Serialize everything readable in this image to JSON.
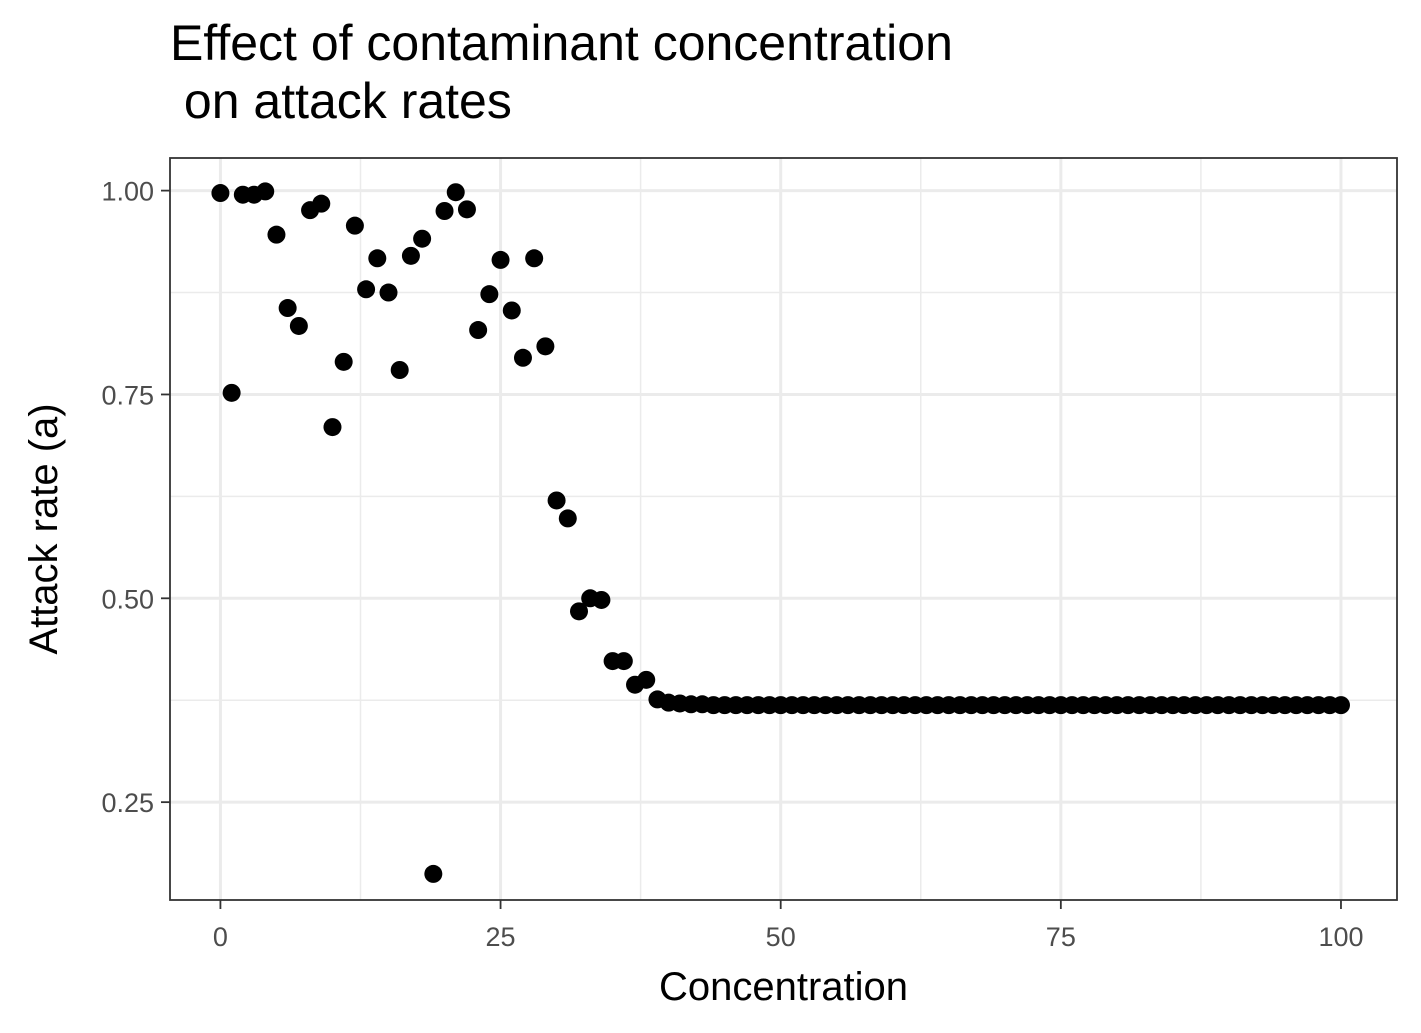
{
  "chart_data": {
    "type": "scatter",
    "title": "Effect of contaminant concentration\n on attack rates",
    "xlabel": "Concentration",
    "ylabel": "Attack rate (a)",
    "xlim": [
      -4.5,
      105
    ],
    "ylim": [
      0.13,
      1.04
    ],
    "xticks": [
      0,
      25,
      50,
      75,
      100
    ],
    "xtick_labels": [
      "0",
      "25",
      "50",
      "75",
      "100"
    ],
    "yticks": [
      0.25,
      0.5,
      0.75,
      1.0
    ],
    "ytick_labels": [
      "0.25",
      "0.50",
      "0.75",
      "1.00"
    ],
    "grid": true,
    "legend": "none",
    "point_color": "#000000",
    "x": [
      0,
      1,
      2,
      3,
      4,
      5,
      6,
      7,
      8,
      9,
      10,
      11,
      12,
      13,
      14,
      15,
      16,
      17,
      18,
      19,
      20,
      21,
      22,
      23,
      24,
      25,
      26,
      27,
      28,
      29,
      30,
      31,
      32,
      33,
      34,
      35,
      36,
      37,
      38,
      39,
      40,
      41,
      42,
      43,
      44,
      45,
      46,
      47,
      48,
      49,
      50,
      51,
      52,
      53,
      54,
      55,
      56,
      57,
      58,
      59,
      60,
      61,
      62,
      63,
      64,
      65,
      66,
      67,
      68,
      69,
      70,
      71,
      72,
      73,
      74,
      75,
      76,
      77,
      78,
      79,
      80,
      81,
      82,
      83,
      84,
      85,
      86,
      87,
      88,
      89,
      90,
      91,
      92,
      93,
      94,
      95,
      96,
      97,
      98,
      99,
      100
    ],
    "y": [
      0.997,
      0.752,
      0.995,
      0.995,
      0.999,
      0.946,
      0.856,
      0.834,
      0.976,
      0.984,
      0.71,
      0.79,
      0.957,
      0.879,
      0.917,
      0.875,
      0.78,
      0.92,
      0.941,
      0.162,
      0.975,
      0.998,
      0.977,
      0.829,
      0.873,
      0.915,
      0.853,
      0.795,
      0.917,
      0.809,
      0.62,
      0.598,
      0.484,
      0.5,
      0.498,
      0.423,
      0.423,
      0.394,
      0.4,
      0.376,
      0.372,
      0.371,
      0.37,
      0.37,
      0.369,
      0.369,
      0.369,
      0.369,
      0.369,
      0.369,
      0.369,
      0.369,
      0.369,
      0.369,
      0.369,
      0.369,
      0.369,
      0.369,
      0.369,
      0.369,
      0.369,
      0.369,
      0.369,
      0.369,
      0.369,
      0.369,
      0.369,
      0.369,
      0.369,
      0.369,
      0.369,
      0.369,
      0.369,
      0.369,
      0.369,
      0.369,
      0.369,
      0.369,
      0.369,
      0.369,
      0.369,
      0.369,
      0.369,
      0.369,
      0.369,
      0.369,
      0.369,
      0.369,
      0.369,
      0.369,
      0.369,
      0.369,
      0.369,
      0.369,
      0.369,
      0.369,
      0.369,
      0.369,
      0.369,
      0.369,
      0.369
    ]
  }
}
